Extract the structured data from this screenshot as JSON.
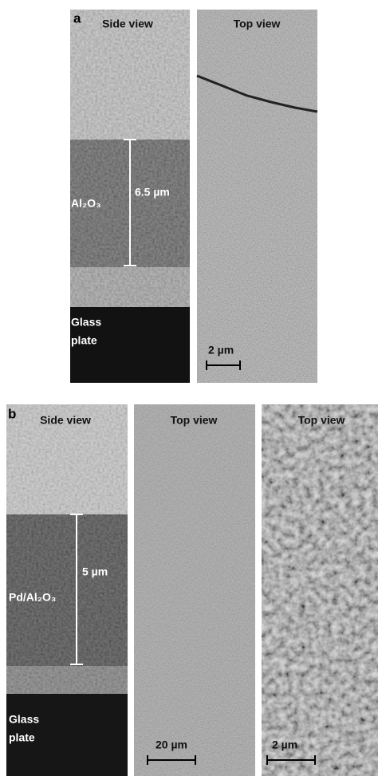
{
  "panels": [
    {
      "letter": "a",
      "images": [
        {
          "caption": "Side view",
          "layer_label": "Al₂O₃",
          "thickness": "6.5 µm",
          "substrate": [
            "Glass",
            "plate"
          ]
        },
        {
          "caption": "Top view",
          "scale_bar": "2 µm"
        }
      ]
    },
    {
      "letter": "b",
      "images": [
        {
          "caption": "Side view",
          "layer_label": "Pd/Al₂O₃",
          "thickness": "5 µm",
          "substrate": [
            "Glass",
            "plate"
          ]
        },
        {
          "caption": "Top view",
          "scale_bar": "20 µm"
        },
        {
          "caption": "Top view",
          "scale_bar": "2 µm"
        }
      ]
    }
  ]
}
